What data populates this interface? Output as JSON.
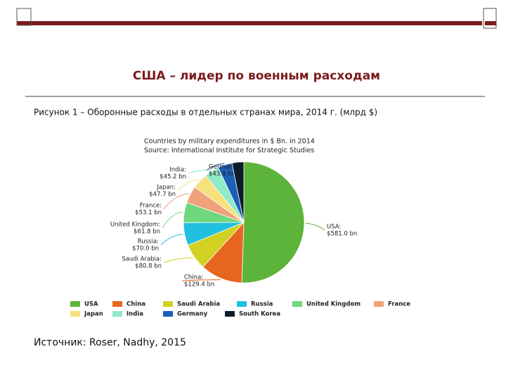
{
  "slide_title": "США – лидер по военным расходам",
  "caption": "Рисунок 1 –  Оборонные расходы  в отдельных странах мира,  2014 г. (млрд $)",
  "source": "Источник: Roser, Nadhy, 2015",
  "chart_data": {
    "type": "pie",
    "title": "Countries by military expenditures in $ Bn. in 2014",
    "subtitle": "Source: International Institute for Strategic Studies",
    "categories": [
      "USA",
      "China",
      "Saudi Arabia",
      "Russia",
      "United Kingdom",
      "France",
      "Japan",
      "India",
      "Germany",
      "South Korea"
    ],
    "slice_labels": [
      "USA:",
      "China:",
      "Saudi Arabia:",
      "Russia:",
      "United Kingdom:",
      "France:",
      "Japan:",
      "India:",
      "Germany:",
      null
    ],
    "values": [
      581.0,
      129.4,
      80.8,
      70.0,
      61.8,
      53.1,
      47.7,
      45.2,
      43.9,
      36.4
    ],
    "value_labels": [
      "$581.0 bn",
      "$129.4 bn",
      "$80.8 bn",
      "$70.0 bn",
      "$61.8 bn",
      "$53.1 bn",
      "$47.7 bn",
      "$45.2 bn",
      "$43.9 bn",
      null
    ],
    "colors": [
      "#5cb43a",
      "#e8651e",
      "#d2d020",
      "#22c0e0",
      "#6fd77c",
      "#f0a27a",
      "#f6e27c",
      "#90e9c9",
      "#1c5fb5",
      "#0e1b2b"
    ]
  }
}
